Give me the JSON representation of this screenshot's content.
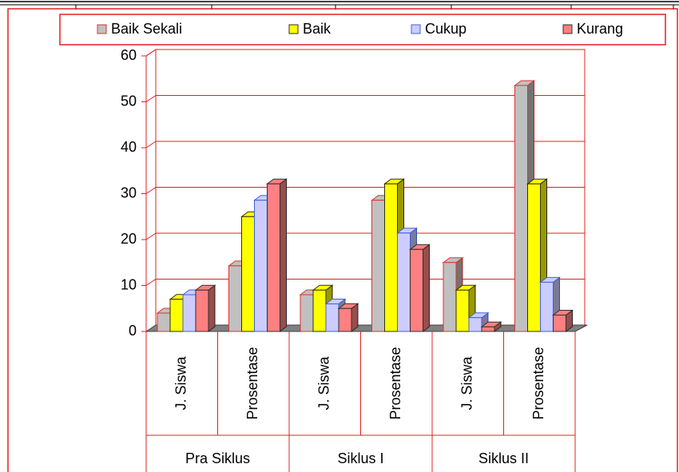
{
  "chart_data": {
    "type": "bar3d",
    "categories": [
      "J. Siswa",
      "Prosentase",
      "J. Siswa",
      "Prosentase",
      "J. Siswa",
      "Prosentase"
    ],
    "groups": [
      "Pra Siklus",
      "Siklus I",
      "Siklus II"
    ],
    "series": [
      {
        "name": "Baik Sekali",
        "color": "#c0c0c0",
        "edge_color": "#e03030",
        "values": [
          4,
          14.29,
          8,
          28.57,
          15,
          53.57
        ]
      },
      {
        "name": "Baik",
        "color": "#ffff00",
        "edge_color": "#303000",
        "values": [
          7,
          25,
          9,
          32.14,
          9,
          32.14
        ]
      },
      {
        "name": "Cukup",
        "color": "#ccccff",
        "edge_color": "#4060e0",
        "values": [
          8,
          28.57,
          6,
          21.43,
          3,
          10.71
        ]
      },
      {
        "name": "Kurang",
        "color": "#ff8080",
        "edge_color": "#303030",
        "values": [
          9,
          32.14,
          5,
          17.86,
          1,
          3.57
        ]
      }
    ],
    "ylim": [
      0,
      60
    ],
    "yticks": [
      0,
      10,
      20,
      30,
      40,
      50,
      60
    ],
    "grid": true,
    "legend": "top"
  }
}
